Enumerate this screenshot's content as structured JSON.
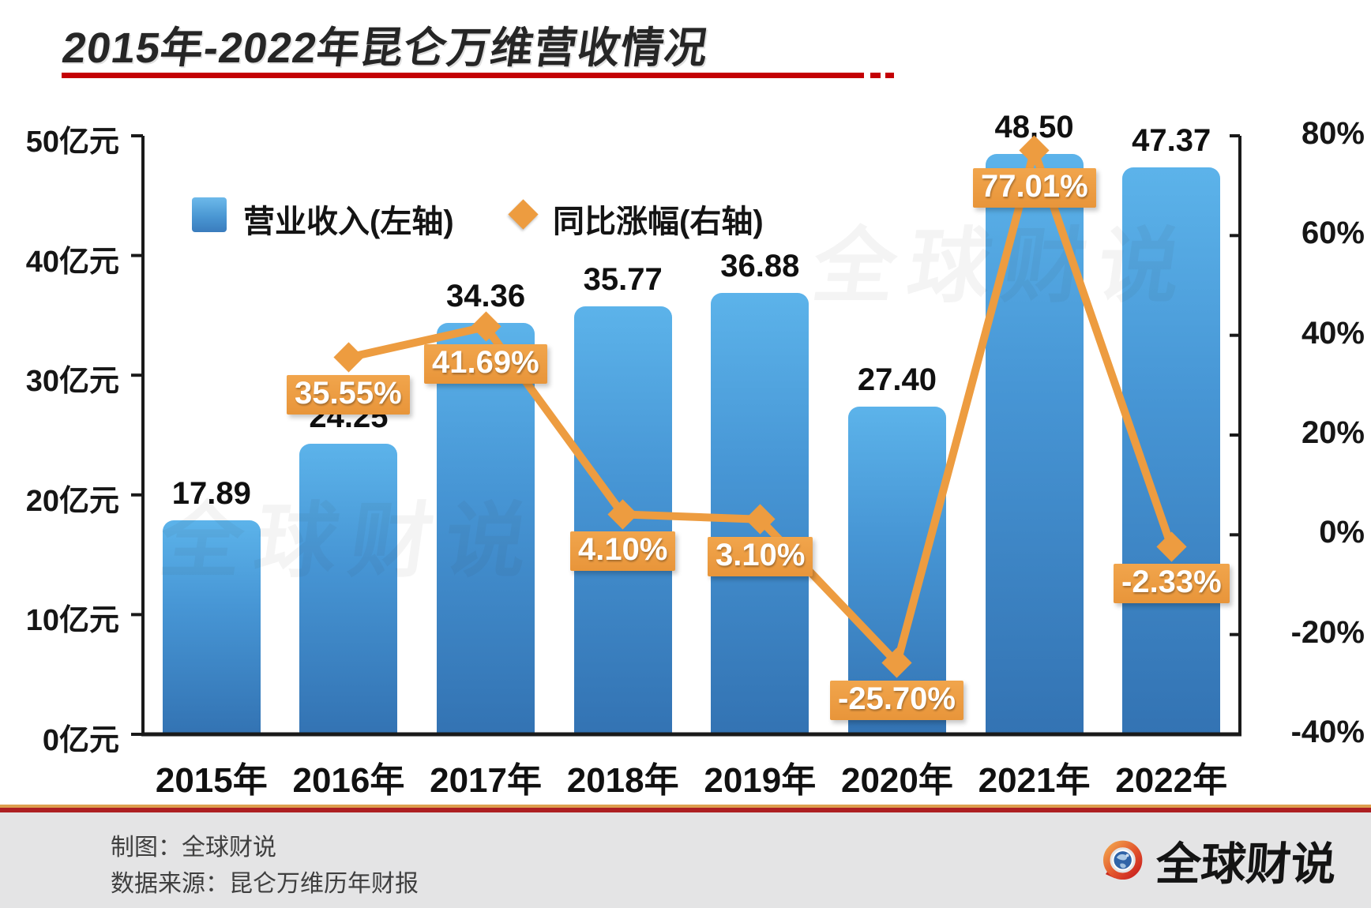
{
  "title": "2015年-2022年昆仑万维营收情况",
  "legend": [
    {
      "label": "营业收入(左轴)",
      "marker": "square"
    },
    {
      "label": "同比涨幅(右轴)",
      "marker": "diamond"
    }
  ],
  "watermark_text": "全球财说",
  "footer": {
    "line1": "制图：全球财说",
    "line2": "数据来源：昆仑万维历年财报",
    "brand": "全球财说"
  },
  "colors": {
    "bar_top": "#5cb3ea",
    "bar_bottom": "#3373b3",
    "orange": "#ED9C40",
    "title_underline_red": "#c40004",
    "axis": "#1a1a1a",
    "footer_band": "#e4e4e5"
  },
  "chart_data": {
    "type": "bar+line",
    "title": "2015年-2022年昆仑万维营收情况",
    "categories": [
      "2015年",
      "2016年",
      "2017年",
      "2018年",
      "2019年",
      "2020年",
      "2021年",
      "2022年"
    ],
    "series": [
      {
        "name": "营业收入(左轴)",
        "type": "bar",
        "axis": "left",
        "unit": "亿元",
        "values": [
          17.89,
          24.25,
          34.36,
          35.77,
          36.88,
          27.4,
          48.5,
          47.37
        ],
        "labels": [
          "17.89",
          "24.25",
          "34.36",
          "35.77",
          "36.88",
          "27.40",
          "48.50",
          "47.37"
        ]
      },
      {
        "name": "同比涨幅(右轴)",
        "type": "line",
        "axis": "right",
        "unit": "%",
        "values": [
          null,
          35.55,
          41.69,
          4.1,
          3.1,
          -25.7,
          77.01,
          -2.33
        ],
        "labels": [
          null,
          "35.55%",
          "41.69%",
          "4.10%",
          "3.10%",
          "-25.70%",
          "77.01%",
          "-2.33%"
        ]
      }
    ],
    "left_axis": {
      "min": 0,
      "max": 50,
      "ticks": [
        {
          "value": 50,
          "label": "50亿元"
        },
        {
          "value": 40,
          "label": "40亿元"
        },
        {
          "value": 30,
          "label": "30亿元"
        },
        {
          "value": 20,
          "label": "20亿元"
        },
        {
          "value": 10,
          "label": "10亿元"
        },
        {
          "value": 0,
          "label": "0亿元"
        }
      ]
    },
    "right_axis": {
      "min": -40,
      "max": 80,
      "ticks": [
        {
          "value": 80,
          "label": "80%"
        },
        {
          "value": 60,
          "label": "60%"
        },
        {
          "value": 40,
          "label": "40%"
        },
        {
          "value": 20,
          "label": "20%"
        },
        {
          "value": 0,
          "label": "0%"
        },
        {
          "value": -20,
          "label": "-20%"
        },
        {
          "value": -40,
          "label": "-40%"
        }
      ]
    },
    "grid": false,
    "legend_position": "top-left-inside"
  }
}
